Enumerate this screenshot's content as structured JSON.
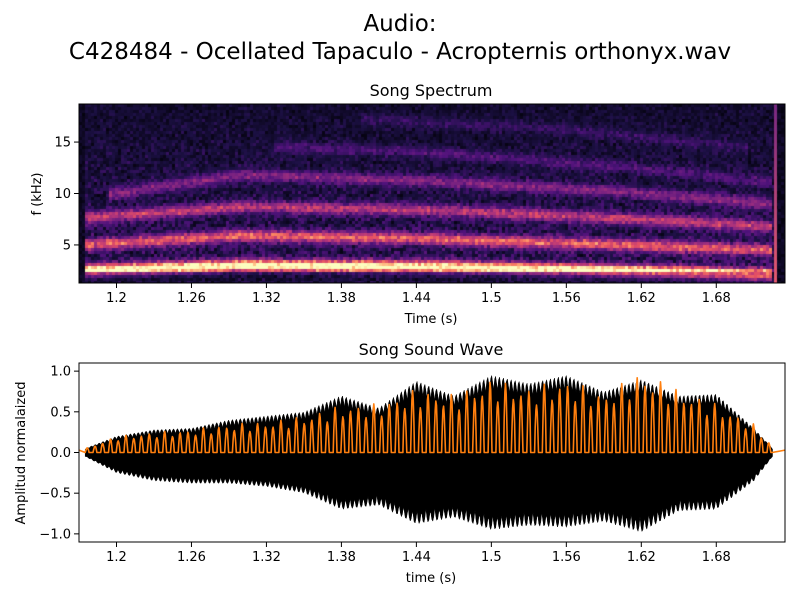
{
  "figure": {
    "title_line1": "Audio:",
    "title_line2": "C428484 - Ocellated Tapaculo - Acropternis orthonyx.wav"
  },
  "chart_data": [
    {
      "type": "heatmap",
      "title": "Song Spectrum",
      "xlabel": "Time (s)",
      "ylabel": "f (kHz)",
      "xlim": [
        1.17,
        1.735
      ],
      "ylim": [
        1.3,
        18.7
      ],
      "x_ticks": [
        1.2,
        1.26,
        1.32,
        1.38,
        1.44,
        1.5,
        1.56,
        1.62,
        1.68
      ],
      "x_tick_labels": [
        "1.2",
        "1.26",
        "1.32",
        "1.38",
        "1.44",
        "1.5",
        "1.56",
        "1.62",
        "1.68"
      ],
      "y_ticks": [
        5,
        10,
        15
      ],
      "y_tick_labels": [
        "5",
        "10",
        "15"
      ],
      "colormap": "magma",
      "harmonics": [
        {
          "t": [
            1.175,
            1.3,
            1.45,
            1.6,
            1.72
          ],
          "f": [
            2.5,
            3.0,
            2.9,
            2.5,
            2.1
          ],
          "intensity": 1.0
        },
        {
          "t": [
            1.175,
            1.3,
            1.45,
            1.6,
            1.72
          ],
          "f": [
            5.0,
            5.9,
            5.6,
            5.0,
            4.5
          ],
          "intensity": 0.55
        },
        {
          "t": [
            1.175,
            1.3,
            1.45,
            1.6,
            1.72
          ],
          "f": [
            7.6,
            8.7,
            8.4,
            7.6,
            6.8
          ],
          "intensity": 0.42
        },
        {
          "t": [
            1.2,
            1.3,
            1.45,
            1.6,
            1.72
          ],
          "f": [
            10.0,
            11.8,
            11.2,
            10.2,
            9.0
          ],
          "intensity": 0.28
        },
        {
          "t": [
            1.33,
            1.45,
            1.6,
            1.72
          ],
          "f": [
            14.5,
            14.0,
            12.6,
            11.2
          ],
          "intensity": 0.15
        },
        {
          "t": [
            1.4,
            1.55,
            1.7
          ],
          "f": [
            17.2,
            16.3,
            14.5
          ],
          "intensity": 0.1
        }
      ],
      "onset_marker_t": 1.727
    },
    {
      "type": "line",
      "title": "Song Sound Wave",
      "xlabel": "time (s)",
      "ylabel": "Amplitud normalaized",
      "xlim": [
        1.17,
        1.735
      ],
      "ylim": [
        -1.1,
        1.1
      ],
      "x_ticks": [
        1.2,
        1.26,
        1.32,
        1.38,
        1.44,
        1.5,
        1.56,
        1.62,
        1.68
      ],
      "x_tick_labels": [
        "1.2",
        "1.26",
        "1.32",
        "1.38",
        "1.44",
        "1.5",
        "1.56",
        "1.62",
        "1.68"
      ],
      "y_ticks": [
        1.0,
        0.5,
        0.0,
        -0.5,
        -1.0
      ],
      "y_tick_labels": [
        "1.0",
        "0.5",
        "0.0",
        "−0.5",
        "−1.0"
      ],
      "series": [
        {
          "color": "#000000",
          "t": [
            1.175,
            1.2,
            1.23,
            1.26,
            1.29,
            1.32,
            1.35,
            1.38,
            1.41,
            1.44,
            1.47,
            1.5,
            1.53,
            1.56,
            1.59,
            1.62,
            1.65,
            1.68,
            1.71,
            1.725
          ],
          "upper": [
            0.05,
            0.2,
            0.28,
            0.3,
            0.4,
            0.45,
            0.5,
            0.7,
            0.55,
            0.88,
            0.7,
            0.95,
            0.85,
            0.95,
            0.75,
            0.9,
            0.7,
            0.72,
            0.3,
            0.05
          ],
          "lower": [
            -0.05,
            -0.25,
            -0.35,
            -0.38,
            -0.38,
            -0.42,
            -0.5,
            -0.7,
            -0.65,
            -0.88,
            -0.8,
            -0.95,
            -0.9,
            -0.92,
            -0.85,
            -0.98,
            -0.72,
            -0.7,
            -0.35,
            -0.05
          ]
        },
        {
          "color": "#ff7f0e",
          "t": [
            1.175,
            1.2,
            1.23,
            1.26,
            1.29,
            1.32,
            1.35,
            1.38,
            1.41,
            1.44,
            1.47,
            1.5,
            1.53,
            1.56,
            1.59,
            1.62,
            1.65,
            1.68,
            1.71,
            1.725
          ],
          "upper": [
            0.05,
            0.2,
            0.25,
            0.28,
            0.35,
            0.38,
            0.45,
            0.58,
            0.6,
            0.78,
            0.72,
            0.9,
            0.8,
            0.9,
            0.72,
            1.0,
            0.78,
            0.6,
            0.35,
            0.08
          ],
          "cycle_s": 0.0062
        }
      ]
    }
  ]
}
